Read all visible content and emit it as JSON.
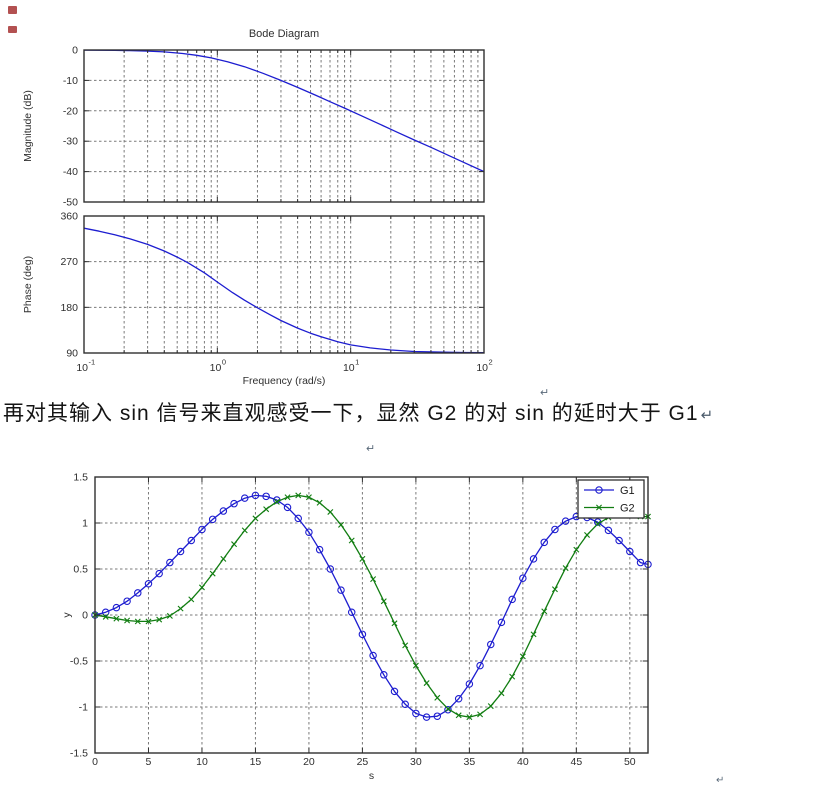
{
  "page": {
    "background": "#ffffff"
  },
  "colors": {
    "curve_blue": "#1d1dd0",
    "curve_green": "#117d11",
    "grid": "#7a7a7a",
    "axis": "#2f2f2f",
    "tick_text": "#2f2f2f",
    "text": "#141414",
    "red_mark": "#a63232",
    "legend_bg": "#ffffff"
  },
  "text": {
    "paragraph": "再对其输入 sin 信号来直观感受一下，显然 G2 的对 sin 的延时大于 G1",
    "paragraph_mark": "↵"
  },
  "icons": {
    "paragraph_mark_icon": "↵",
    "red_glyph_icon": "small-red-square"
  },
  "chart_data": [
    {
      "id": "bode",
      "type": "line",
      "title": "Bode Diagram",
      "xlabel": "Frequency  (rad/s)",
      "xscale": "log",
      "xlim": [
        0.1,
        100
      ],
      "xticks": [
        {
          "base": "10",
          "exp": "-1",
          "value": 0.1
        },
        {
          "base": "10",
          "exp": "0",
          "value": 1
        },
        {
          "base": "10",
          "exp": "1",
          "value": 10
        },
        {
          "base": "10",
          "exp": "2",
          "value": 100
        }
      ],
      "grid": true,
      "subplots": [
        {
          "ylabel": "Magnitude (dB)",
          "ylim": [
            -50,
            0
          ],
          "yticks": [
            0,
            -10,
            -20,
            -30,
            -40,
            -50
          ],
          "series": [
            {
              "name": "magnitude",
              "x": [
                0.1,
                0.13,
                0.17,
                0.22,
                0.3,
                0.4,
                0.55,
                0.7,
                0.9,
                1.2,
                1.6,
                2.2,
                3,
                4,
                5.5,
                7,
                9,
                12,
                16,
                22,
                30,
                40,
                55,
                70,
                100
              ],
              "y": [
                -0.04,
                -0.07,
                -0.12,
                -0.21,
                -0.37,
                -0.64,
                -1.15,
                -1.73,
                -2.6,
                -3.9,
                -5.5,
                -7.66,
                -10.0,
                -12.3,
                -14.95,
                -17.0,
                -19.1,
                -21.6,
                -24.1,
                -26.9,
                -29.6,
                -32.0,
                -34.8,
                -36.9,
                -40.0
              ]
            }
          ]
        },
        {
          "ylabel": "Phase (deg)",
          "ylim": [
            90,
            360
          ],
          "yticks": [
            360,
            270,
            180,
            90
          ],
          "series": [
            {
              "name": "phase",
              "x": [
                0.1,
                0.13,
                0.17,
                0.22,
                0.3,
                0.4,
                0.5,
                0.6,
                0.8,
                1,
                1.3,
                1.6,
                2,
                2.5,
                3,
                4,
                5,
                6,
                8,
                10,
                14,
                20,
                30,
                50,
                70,
                100
              ],
              "y": [
                336,
                330,
                323,
                315,
                304,
                291,
                279,
                268,
                248,
                230,
                209,
                194,
                179,
                165,
                154,
                139,
                129,
                122,
                112,
                106,
                100,
                96,
                93,
                91.5,
                91,
                90.5
              ]
            }
          ]
        }
      ]
    },
    {
      "id": "response",
      "type": "line",
      "title": "",
      "xlabel": "s",
      "ylabel": "y",
      "xlim": [
        0,
        51.7
      ],
      "ylim": [
        -1.5,
        1.5
      ],
      "xticks": [
        0,
        5,
        10,
        15,
        20,
        25,
        30,
        35,
        40,
        45,
        50
      ],
      "yticks": [
        1.5,
        1,
        0.5,
        0,
        -0.5,
        -1,
        -1.5
      ],
      "grid": true,
      "legend": {
        "position": "top-right",
        "entries": [
          "G1",
          "G2"
        ]
      },
      "series": [
        {
          "name": "G1",
          "marker": "o",
          "x": [
            0,
            1,
            2,
            3,
            4,
            5,
            6,
            7,
            8,
            9,
            10,
            11,
            12,
            13,
            14,
            15,
            16,
            17,
            18,
            19,
            20,
            21,
            22,
            23,
            24,
            25,
            26,
            27,
            28,
            29,
            30,
            31,
            32,
            33,
            34,
            35,
            36,
            37,
            38,
            39,
            40,
            41,
            42,
            43,
            44,
            45,
            46,
            47,
            48,
            49,
            50,
            51,
            51.7
          ],
          "y": [
            0,
            0.03,
            0.08,
            0.15,
            0.24,
            0.34,
            0.45,
            0.57,
            0.69,
            0.81,
            0.93,
            1.04,
            1.13,
            1.21,
            1.27,
            1.3,
            1.29,
            1.25,
            1.17,
            1.05,
            0.9,
            0.71,
            0.5,
            0.27,
            0.03,
            -0.21,
            -0.44,
            -0.65,
            -0.83,
            -0.97,
            -1.07,
            -1.11,
            -1.1,
            -1.03,
            -0.91,
            -0.75,
            -0.55,
            -0.32,
            -0.08,
            0.17,
            0.4,
            0.61,
            0.79,
            0.93,
            1.02,
            1.07,
            1.06,
            1.01,
            0.92,
            0.81,
            0.69,
            0.57,
            0.55
          ]
        },
        {
          "name": "G2",
          "marker": "x",
          "x": [
            0,
            1,
            2,
            3,
            4,
            5,
            6,
            7,
            8,
            9,
            10,
            11,
            12,
            13,
            14,
            15,
            16,
            17,
            18,
            19,
            20,
            21,
            22,
            23,
            24,
            25,
            26,
            27,
            28,
            29,
            30,
            31,
            32,
            33,
            34,
            35,
            36,
            37,
            38,
            39,
            40,
            41,
            42,
            43,
            44,
            45,
            46,
            47,
            48,
            49,
            50,
            51,
            51.7
          ],
          "y": [
            0,
            -0.02,
            -0.04,
            -0.06,
            -0.07,
            -0.07,
            -0.05,
            -0.01,
            0.07,
            0.17,
            0.3,
            0.45,
            0.61,
            0.77,
            0.92,
            1.05,
            1.15,
            1.23,
            1.28,
            1.3,
            1.28,
            1.22,
            1.12,
            0.98,
            0.81,
            0.61,
            0.39,
            0.15,
            -0.09,
            -0.33,
            -0.55,
            -0.74,
            -0.9,
            -1.02,
            -1.09,
            -1.11,
            -1.08,
            -0.99,
            -0.85,
            -0.67,
            -0.45,
            -0.21,
            0.04,
            0.28,
            0.51,
            0.71,
            0.87,
            0.99,
            1.06,
            1.09,
            1.08,
            1.07,
            1.07
          ]
        }
      ]
    }
  ]
}
